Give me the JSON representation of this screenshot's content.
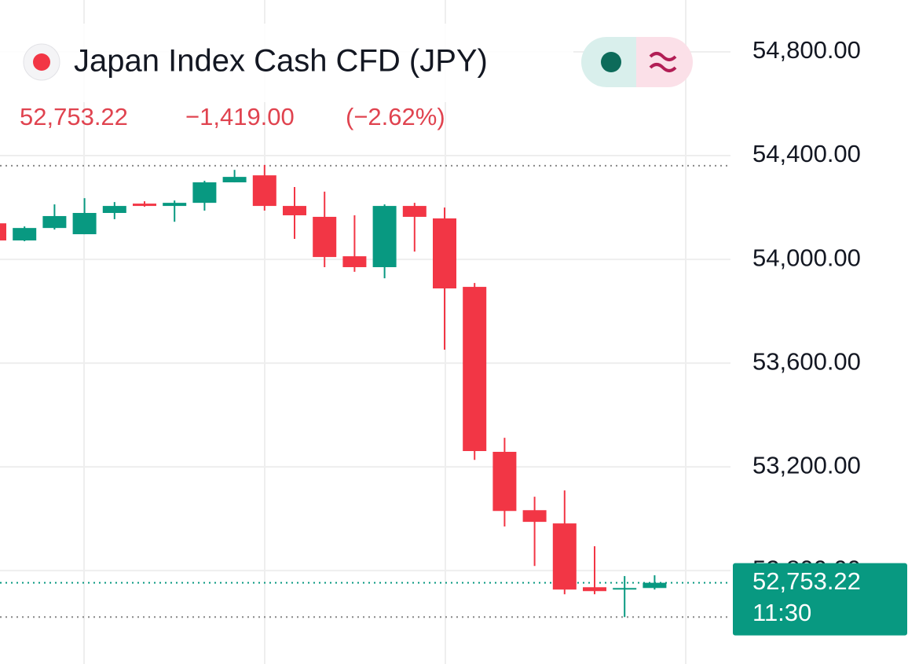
{
  "header": {
    "title": "Japan Index Cash CFD (JPY)",
    "price": "52,753.22",
    "change": "−1,419.00",
    "change_percent": "(−2.62%)"
  },
  "chart_data": {
    "type": "candlestick",
    "open": [
      54139,
      54073,
      54121,
      54097,
      54179,
      54215,
      54206,
      54218,
      54297,
      54324,
      54206,
      54164,
      54012,
      53970,
      54206,
      54158,
      53894,
      53258,
      53033,
      52982,
      52736,
      52727,
      52733
    ],
    "high": [
      54145,
      54127,
      54212,
      54236,
      54221,
      54224,
      54227,
      54303,
      54345,
      54364,
      54279,
      54261,
      54170,
      54212,
      54218,
      54200,
      53909,
      53312,
      53085,
      53109,
      52894,
      52779,
      52782
    ],
    "low": [
      54067,
      54070,
      54115,
      54097,
      54155,
      54203,
      54145,
      54188,
      54297,
      54188,
      54079,
      53970,
      53952,
      53927,
      54030,
      53652,
      53227,
      52970,
      52818,
      52709,
      52709,
      52621,
      52727
    ],
    "close": [
      54073,
      54121,
      54167,
      54179,
      54206,
      54206,
      54218,
      54297,
      54318,
      54206,
      54170,
      54009,
      53970,
      54206,
      54164,
      53888,
      53261,
      53030,
      52988,
      52727,
      52721,
      52733,
      52753.22
    ],
    "up_color": "#089981",
    "down_color": "#f23645",
    "ylim": [
      52440,
      55000
    ],
    "yticks": [
      {
        "value": 54800,
        "label": "54,800.00"
      },
      {
        "value": 54400,
        "label": "54,400.00"
      },
      {
        "value": 54000,
        "label": "54,000.00"
      },
      {
        "value": 53600,
        "label": "53,600.00"
      },
      {
        "value": 53200,
        "label": "53,200.00"
      },
      {
        "value": 52800,
        "label": "52,800.00"
      }
    ],
    "grid": true,
    "reference_lines": [
      54361,
      52621
    ],
    "last_price": {
      "value": 52753.22,
      "label": "52,753.22"
    },
    "last_time": "11:30"
  }
}
